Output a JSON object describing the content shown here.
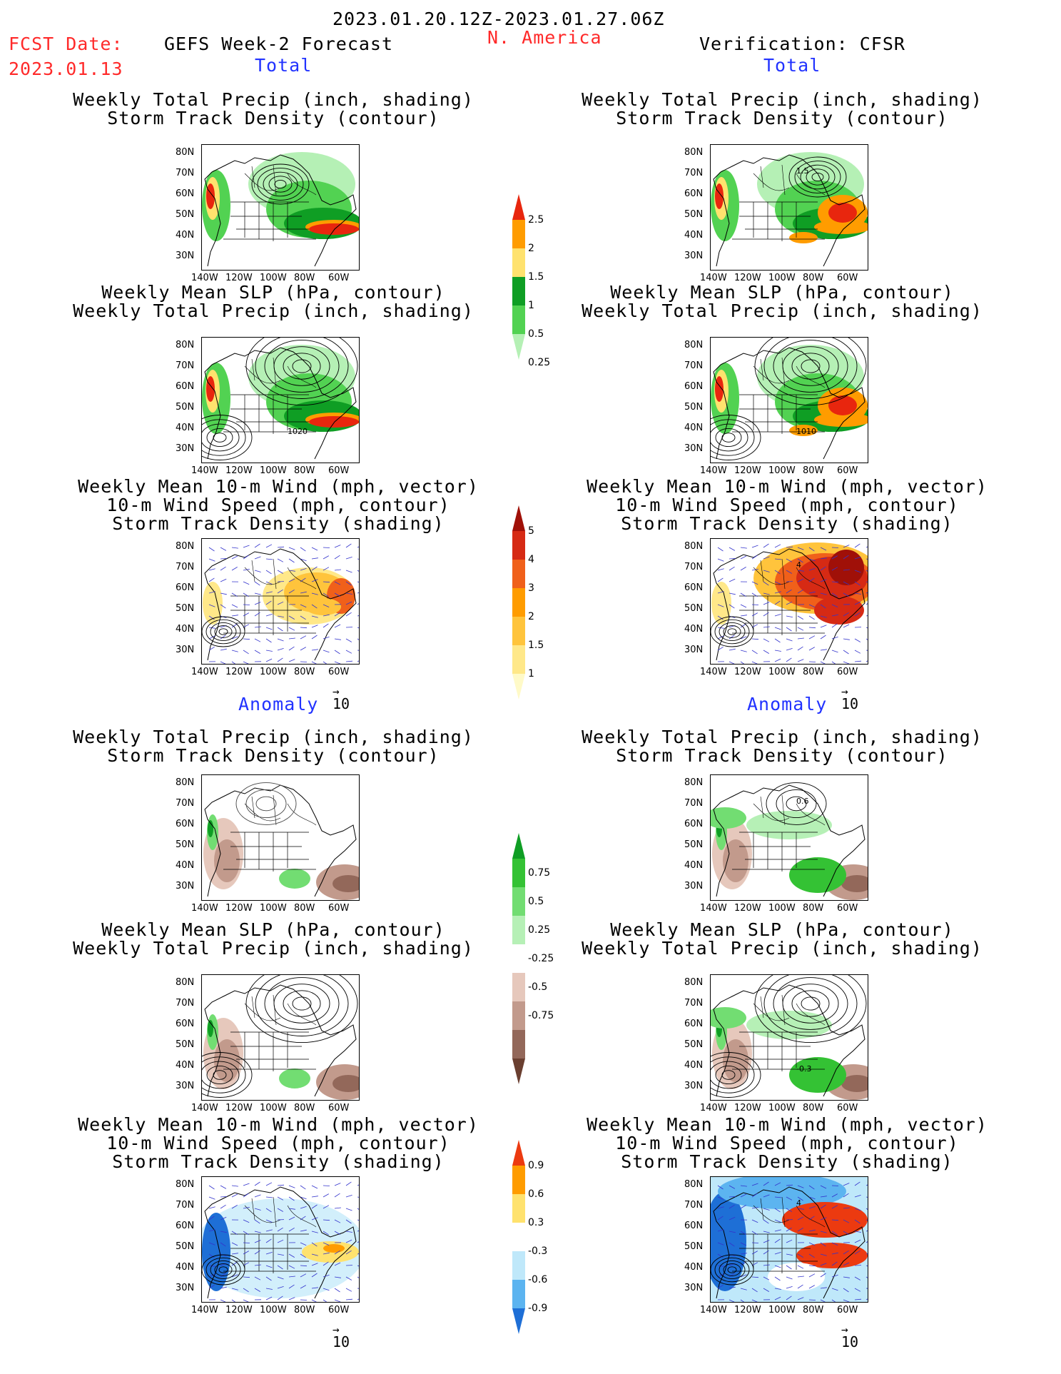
{
  "header": {
    "date_range": "2023.01.20.12Z-2023.01.27.06Z",
    "fcst_label": "FCST Date:",
    "fcst_date": "2023.01.13",
    "left_title": "GEFS Week-2 Forecast",
    "region": "N. America",
    "right_title": "Verification: CFSR"
  },
  "sections": {
    "total": "Total",
    "anomaly": "Anomaly"
  },
  "panel_titles": {
    "precip_storm": [
      "Weekly Total Precip (inch, shading)",
      "Storm Track Density (contour)"
    ],
    "slp_precip": [
      "Weekly Mean SLP (hPa, contour)",
      "Weekly Total Precip (inch, shading)"
    ],
    "wind_storm": [
      "Weekly Mean 10-m Wind (mph, vector)",
      "10-m Wind Speed (mph, contour)",
      "Storm Track Density (shading)"
    ]
  },
  "axes": {
    "lat_ticks": [
      "80N",
      "70N",
      "60N",
      "50N",
      "40N",
      "30N"
    ],
    "lon_ticks": [
      "140W",
      "120W",
      "100W",
      "80W",
      "60W"
    ]
  },
  "vector_ref": "10",
  "map_labels": {
    "fc_total_slp": "1020",
    "obs_total_storm": "1.5",
    "obs_total_slp": "1010",
    "obs_total_wind": "4",
    "obs_anom_storm_a": "0.6",
    "obs_anom_storm_b": "-0.3",
    "obs_anom_wind": "4"
  },
  "colorbars": {
    "total_precip": {
      "labels": [
        "2.5",
        "2",
        "1.5",
        "1",
        "0.5",
        "0.25"
      ],
      "colors": [
        "#e8260e",
        "#ff9c00",
        "#ffe26e",
        "#0f9e24",
        "#52d252",
        "#b5f0b5"
      ]
    },
    "total_storm": {
      "labels": [
        "5",
        "4",
        "3",
        "2",
        "1.5",
        "1"
      ],
      "colors": [
        "#a01008",
        "#d62a14",
        "#f0601a",
        "#ff9c00",
        "#ffc43c",
        "#ffe889",
        "#fffac8"
      ]
    },
    "anom_precip": {
      "labels": [
        "0.75",
        "0.5",
        "0.25",
        "-0.25",
        "-0.5",
        "-0.75"
      ],
      "colors": [
        "#0f9e24",
        "#34c234",
        "#72dd72",
        "#b6f0b6",
        "#ffffff",
        "#e6c8bc",
        "#c29a8c",
        "#93685a",
        "#6a3f30"
      ]
    },
    "anom_storm": {
      "labels": [
        "0.9",
        "0.6",
        "0.3",
        "-0.3",
        "-0.6",
        "-0.9"
      ],
      "colors": [
        "#ec3a10",
        "#ff9c00",
        "#ffe26e",
        "#ffffff",
        "#bfe8fa",
        "#5cb4f0",
        "#1e6fd6"
      ]
    }
  }
}
